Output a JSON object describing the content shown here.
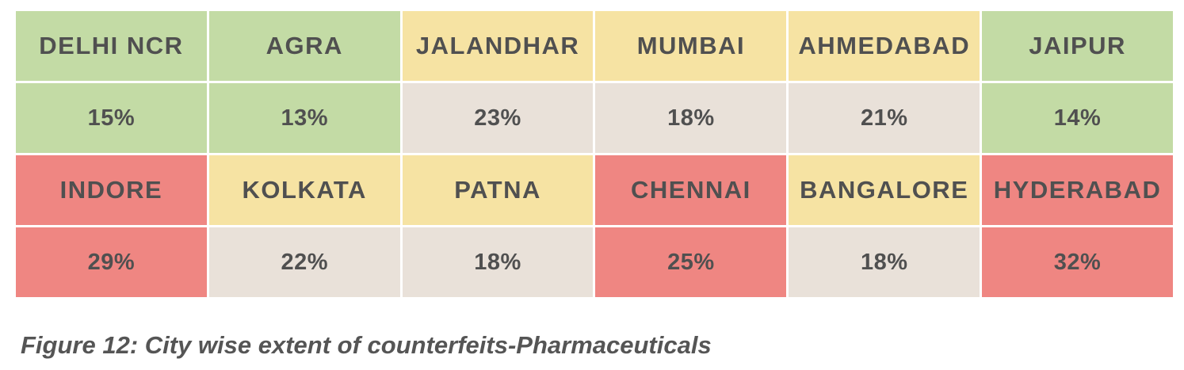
{
  "chart_data": {
    "type": "table",
    "title": "",
    "caption": "Figure 12: City wise extent of counterfeits-Pharmaceuticals",
    "colors": {
      "green": "#c3dba5",
      "yellow": "#f6e3a3",
      "beige": "#e9e1d9",
      "red": "#ef8682",
      "text": "#505050"
    },
    "rows": [
      {
        "cities": [
          {
            "name": "DELHI NCR",
            "value": "15%",
            "name_color": "green",
            "value_color": "green"
          },
          {
            "name": "AGRA",
            "value": "13%",
            "name_color": "green",
            "value_color": "green"
          },
          {
            "name": "JALANDHAR",
            "value": "23%",
            "name_color": "yellow",
            "value_color": "beige"
          },
          {
            "name": "MUMBAI",
            "value": "18%",
            "name_color": "yellow",
            "value_color": "beige"
          },
          {
            "name": "AHMEDABAD",
            "value": "21%",
            "name_color": "yellow",
            "value_color": "beige"
          },
          {
            "name": "JAIPUR",
            "value": "14%",
            "name_color": "green",
            "value_color": "green"
          }
        ]
      },
      {
        "cities": [
          {
            "name": "INDORE",
            "value": "29%",
            "name_color": "red",
            "value_color": "red"
          },
          {
            "name": "KOLKATA",
            "value": "22%",
            "name_color": "yellow",
            "value_color": "beige"
          },
          {
            "name": "PATNA",
            "value": "18%",
            "name_color": "yellow",
            "value_color": "beige"
          },
          {
            "name": "CHENNAI",
            "value": "25%",
            "name_color": "red",
            "value_color": "red"
          },
          {
            "name": "BANGALORE",
            "value": "18%",
            "name_color": "yellow",
            "value_color": "beige"
          },
          {
            "name": "HYDERABAD",
            "value": "32%",
            "name_color": "red",
            "value_color": "red"
          }
        ]
      }
    ]
  }
}
